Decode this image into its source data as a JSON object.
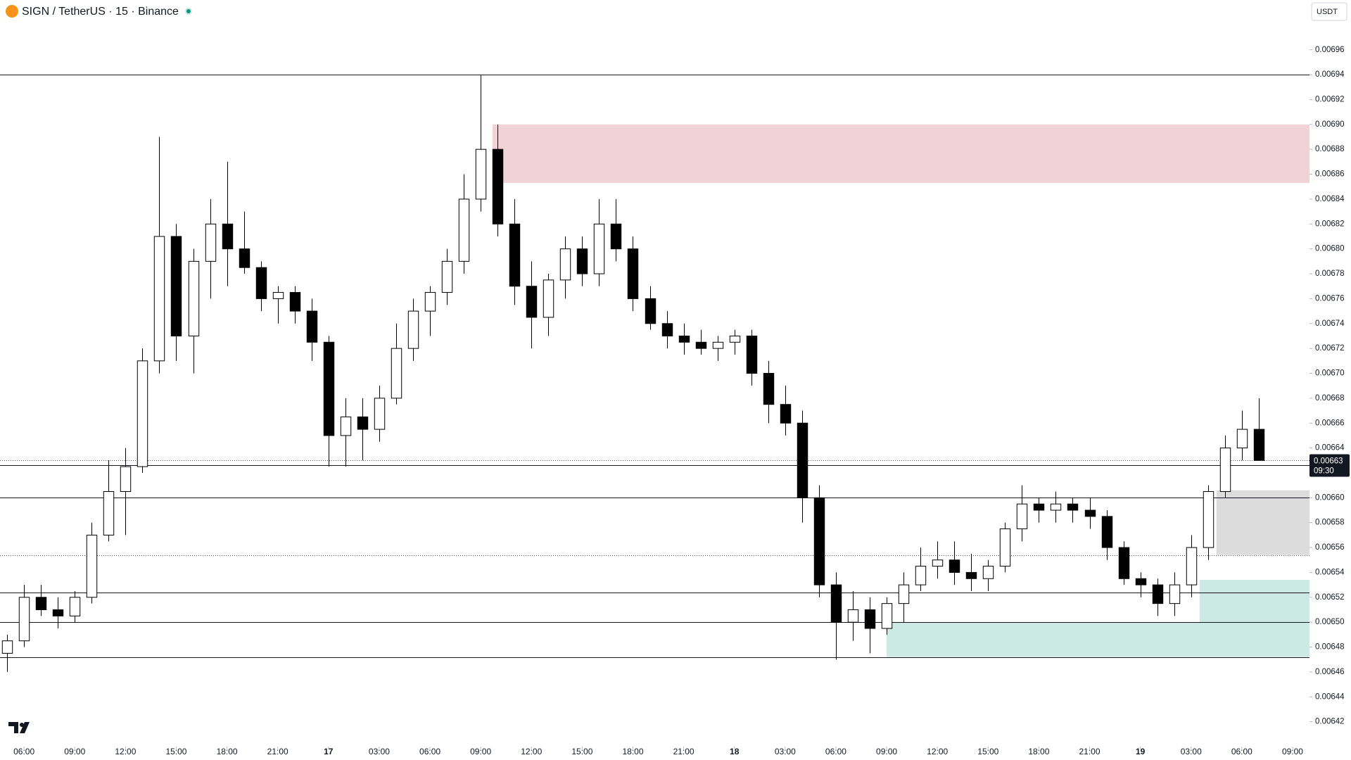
{
  "chart_data": {
    "type": "candlestick",
    "title": "SIGN / TetherUS · 15 · Binance",
    "currency": "USDT",
    "last_price": 0.00663,
    "countdown": "09:30",
    "up_color": "#ffffff",
    "down_color": "#000000",
    "xlim": [
      4.58,
      82.0
    ],
    "ylim": [
      0.0064,
      0.007
    ],
    "xticks": [
      {
        "value": 6,
        "label": "06:00"
      },
      {
        "value": 9,
        "label": "09:00"
      },
      {
        "value": 12,
        "label": "12:00"
      },
      {
        "value": 15,
        "label": "15:00"
      },
      {
        "value": 18,
        "label": "18:00"
      },
      {
        "value": 21,
        "label": "21:00"
      },
      {
        "value": 24,
        "label": "17"
      },
      {
        "value": 27,
        "label": "03:00"
      },
      {
        "value": 30,
        "label": "06:00"
      },
      {
        "value": 33,
        "label": "09:00"
      },
      {
        "value": 36,
        "label": "12:00"
      },
      {
        "value": 39,
        "label": "15:00"
      },
      {
        "value": 42,
        "label": "18:00"
      },
      {
        "value": 45,
        "label": "21:00"
      },
      {
        "value": 48,
        "label": "18"
      },
      {
        "value": 51,
        "label": "03:00"
      },
      {
        "value": 54,
        "label": "06:00"
      },
      {
        "value": 57,
        "label": "09:00"
      },
      {
        "value": 60,
        "label": "12:00"
      },
      {
        "value": 63,
        "label": "15:00"
      },
      {
        "value": 66,
        "label": "18:00"
      },
      {
        "value": 69,
        "label": "21:00"
      },
      {
        "value": 72,
        "label": "19"
      },
      {
        "value": 75,
        "label": "03:00"
      },
      {
        "value": 78,
        "label": "06:00"
      },
      {
        "value": 81,
        "label": "09:00"
      }
    ],
    "yticks": [
      0.00642,
      0.00644,
      0.00646,
      0.00648,
      {
        "value": 0.0065,
        "label": "0.00650"
      },
      0.00652,
      0.00654,
      0.00656,
      0.00658,
      {
        "value": 0.0066,
        "label": "0.00660"
      },
      0.00664,
      0.00666,
      0.00668,
      {
        "value": 0.0067,
        "label": "0.00670"
      },
      0.00672,
      0.00674,
      0.00676,
      0.00678,
      {
        "value": 0.0068,
        "label": "0.00680"
      },
      0.00682,
      0.00684,
      0.00686,
      0.00688,
      {
        "value": 0.0069,
        "label": "0.00690"
      },
      0.00692,
      0.00694,
      0.00696
    ],
    "levels": [
      {
        "value": 0.00694,
        "style": "solid"
      },
      {
        "value": 0.006626,
        "style": "solid"
      },
      {
        "value": 0.0066,
        "style": "solid"
      },
      {
        "value": 0.006554,
        "style": "dotted"
      },
      {
        "value": 0.006524,
        "style": "solid"
      },
      {
        "value": 0.0065,
        "style": "solid"
      },
      {
        "value": 0.006472,
        "style": "solid"
      }
    ],
    "zones": [
      {
        "x_start": 33.7,
        "low": 0.006853,
        "high": 0.0069,
        "color": "#f0d3d6"
      },
      {
        "x_start": 76.5,
        "low": 0.006554,
        "high": 0.006606,
        "color": "#dcdcdd"
      },
      {
        "x_start": 57.0,
        "low": 0.006472,
        "high": 0.0065,
        "color": "#cde9e3"
      },
      {
        "x_start": 75.5,
        "low": 0.0065,
        "high": 0.006534,
        "color": "#cde9e3"
      }
    ],
    "x": [
      5,
      6,
      7,
      8,
      9,
      10,
      11,
      12,
      13,
      14,
      15,
      16,
      17,
      18,
      19,
      20,
      21,
      22,
      23,
      24,
      25,
      26,
      27,
      28,
      29,
      30,
      31,
      32,
      33,
      34,
      35,
      36,
      37,
      38,
      39,
      40,
      41,
      42,
      43,
      44,
      45,
      46,
      47,
      48,
      49,
      50,
      51,
      52,
      53,
      54,
      55,
      56,
      57,
      58,
      59,
      60,
      61,
      62,
      63,
      64,
      65,
      66,
      67,
      68,
      69,
      70,
      71,
      72,
      73,
      74,
      75,
      76,
      77,
      78,
      79
    ],
    "open": [
      0.006475,
      0.006485,
      0.00652,
      0.00651,
      0.006505,
      0.00652,
      0.00657,
      0.006605,
      0.006625,
      0.00671,
      0.00681,
      0.00673,
      0.00679,
      0.00682,
      0.0068,
      0.006785,
      0.00676,
      0.006765,
      0.00675,
      0.006725,
      0.00665,
      0.006665,
      0.006655,
      0.00668,
      0.00672,
      0.00675,
      0.006765,
      0.00679,
      0.00684,
      0.00688,
      0.00682,
      0.00677,
      0.006745,
      0.006775,
      0.0068,
      0.00678,
      0.00682,
      0.0068,
      0.00676,
      0.00674,
      0.00673,
      0.006725,
      0.00672,
      0.006725,
      0.00673,
      0.0067,
      0.006675,
      0.00666,
      0.0066,
      0.00653,
      0.0065,
      0.00651,
      0.006495,
      0.006515,
      0.00653,
      0.006545,
      0.00655,
      0.00654,
      0.006535,
      0.006545,
      0.006575,
      0.006595,
      0.00659,
      0.006595,
      0.00659,
      0.006585,
      0.00656,
      0.006535,
      0.00653,
      0.006515,
      0.00653,
      0.00656,
      0.006605,
      0.00664,
      0.006655
    ],
    "high": [
      0.00649,
      0.00653,
      0.00653,
      0.00652,
      0.006525,
      0.00658,
      0.00663,
      0.00664,
      0.00672,
      0.00689,
      0.00682,
      0.0068,
      0.00684,
      0.00687,
      0.00683,
      0.00679,
      0.00677,
      0.00677,
      0.00676,
      0.00673,
      0.00668,
      0.00668,
      0.00669,
      0.00674,
      0.00676,
      0.00677,
      0.0068,
      0.00686,
      0.00694,
      0.0069,
      0.00684,
      0.00679,
      0.00678,
      0.00681,
      0.00681,
      0.00684,
      0.00684,
      0.00681,
      0.00677,
      0.00675,
      0.00674,
      0.006735,
      0.00673,
      0.006735,
      0.006735,
      0.00671,
      0.00669,
      0.00667,
      0.00661,
      0.00654,
      0.006525,
      0.00652,
      0.00652,
      0.00654,
      0.00656,
      0.006565,
      0.006565,
      0.006555,
      0.00655,
      0.00658,
      0.00661,
      0.0066,
      0.006605,
      0.0066,
      0.0066,
      0.00659,
      0.006565,
      0.00654,
      0.006535,
      0.00654,
      0.00657,
      0.00661,
      0.00665,
      0.00667,
      0.00668
    ],
    "low": [
      0.00646,
      0.00648,
      0.006505,
      0.006495,
      0.0065,
      0.006515,
      0.006565,
      0.00657,
      0.00662,
      0.0067,
      0.00671,
      0.0067,
      0.00676,
      0.00677,
      0.00678,
      0.00675,
      0.00674,
      0.00674,
      0.00671,
      0.006625,
      0.006625,
      0.00663,
      0.006645,
      0.006675,
      0.00671,
      0.00673,
      0.006755,
      0.00678,
      0.00683,
      0.00681,
      0.006755,
      0.00672,
      0.00673,
      0.00676,
      0.00677,
      0.00677,
      0.00679,
      0.00675,
      0.006735,
      0.00672,
      0.006715,
      0.006715,
      0.00671,
      0.006715,
      0.00669,
      0.00666,
      0.00665,
      0.00658,
      0.00652,
      0.00647,
      0.006485,
      0.006475,
      0.00649,
      0.0065,
      0.006525,
      0.006535,
      0.00653,
      0.006525,
      0.006525,
      0.00654,
      0.006565,
      0.00658,
      0.00658,
      0.00658,
      0.006575,
      0.00655,
      0.00653,
      0.00652,
      0.006505,
      0.006505,
      0.00652,
      0.00655,
      0.0066,
      0.00663,
      0.00663
    ],
    "close": [
      0.006485,
      0.00652,
      0.00651,
      0.006505,
      0.00652,
      0.00657,
      0.006605,
      0.006625,
      0.00671,
      0.00681,
      0.00673,
      0.00679,
      0.00682,
      0.0068,
      0.006785,
      0.00676,
      0.006765,
      0.00675,
      0.006725,
      0.00665,
      0.006665,
      0.006655,
      0.00668,
      0.00672,
      0.00675,
      0.006765,
      0.00679,
      0.00684,
      0.00688,
      0.00682,
      0.00677,
      0.006745,
      0.006775,
      0.0068,
      0.00678,
      0.00682,
      0.0068,
      0.00676,
      0.00674,
      0.00673,
      0.006725,
      0.00672,
      0.006725,
      0.00673,
      0.0067,
      0.006675,
      0.00666,
      0.0066,
      0.00653,
      0.0065,
      0.00651,
      0.006495,
      0.006515,
      0.00653,
      0.006545,
      0.00655,
      0.00654,
      0.006535,
      0.006545,
      0.006575,
      0.006595,
      0.00659,
      0.006595,
      0.00659,
      0.006585,
      0.00656,
      0.006535,
      0.00653,
      0.006515,
      0.00653,
      0.00656,
      0.006605,
      0.00664,
      0.006655,
      0.00663
    ]
  }
}
